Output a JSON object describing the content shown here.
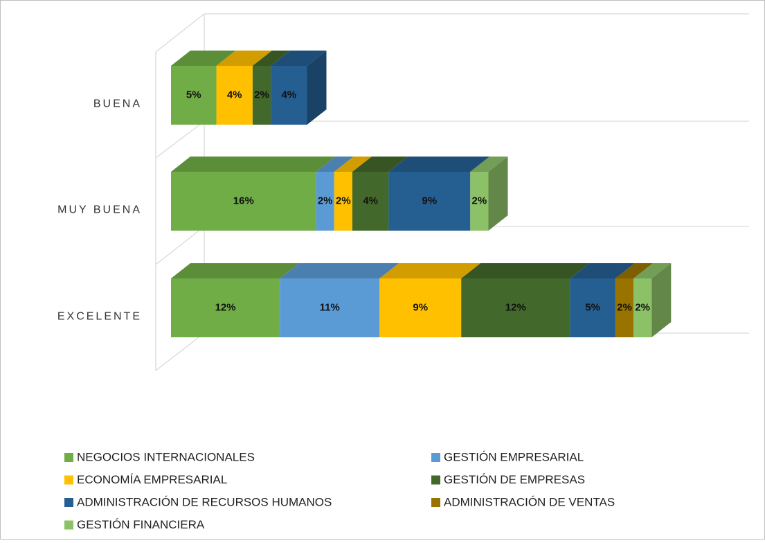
{
  "chart_data": {
    "type": "bar3d_stacked_horizontal",
    "categories": [
      "BUENA",
      "MUY BUENA",
      "EXCELENTE"
    ],
    "series": [
      {
        "name": "NEGOCIOS INTERNACIONALES",
        "color": "#70ad47",
        "values": [
          5,
          16,
          12
        ],
        "value_labels": [
          "5%",
          "16%",
          "12%"
        ]
      },
      {
        "name": "GESTIÓN EMPRESARIAL",
        "color": "#5b9bd5",
        "values": [
          null,
          2,
          11
        ],
        "value_labels": [
          null,
          "2%",
          "11%"
        ]
      },
      {
        "name": "ECONOMÍA EMPRESARIAL",
        "color": "#ffc000",
        "values": [
          4,
          2,
          9
        ],
        "value_labels": [
          "4%",
          "2%",
          "9%"
        ]
      },
      {
        "name": "GESTIÓN DE EMPRESAS",
        "color": "#43682b",
        "values": [
          2,
          4,
          12
        ],
        "value_labels": [
          "2%",
          "4%",
          "12%"
        ]
      },
      {
        "name": "ADMINISTRACIÓN DE RECURSOS HUMANOS",
        "color": "#255e91",
        "values": [
          4,
          9,
          5
        ],
        "value_labels": [
          "4%",
          "9%",
          "5%"
        ]
      },
      {
        "name": "ADMINISTRACIÓN DE VENTAS",
        "color": "#997300",
        "values": [
          null,
          null,
          2
        ],
        "value_labels": [
          null,
          null,
          "2%"
        ]
      },
      {
        "name": "GESTIÓN FINANCIERA",
        "color": "#8cc168",
        "values": [
          null,
          2,
          2
        ],
        "value_labels": [
          null,
          "2%",
          "2%"
        ]
      }
    ],
    "grid": true,
    "legend": "bottom"
  }
}
